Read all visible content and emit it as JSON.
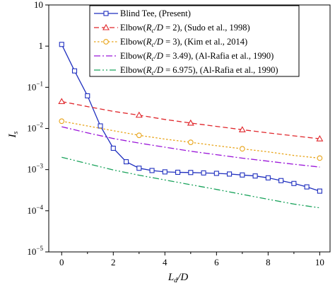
{
  "chart_data": {
    "type": "line",
    "xlabel": "",
    "ylabel": "",
    "xlim": [
      -0.5,
      10.4
    ],
    "ylim_log10": [
      -5,
      1
    ],
    "y_scale": "log",
    "grid": false,
    "legend_placement": "top",
    "x_ticks": [
      0,
      2,
      4,
      6,
      8,
      10
    ],
    "x_tick_labels": [
      "0",
      "2",
      "4",
      "6",
      "8",
      "10"
    ],
    "y_ticks": [
      10,
      1,
      0.1,
      0.01,
      0.001,
      0.0001,
      1e-05
    ],
    "y_tick_labels": [
      {
        "base": "10",
        "exp": ""
      },
      {
        "base": "1",
        "exp": ""
      },
      {
        "base": "10",
        "exp": "−1"
      },
      {
        "base": "10",
        "exp": "−2"
      },
      {
        "base": "10",
        "exp": "−3"
      },
      {
        "base": "10",
        "exp": "−4"
      },
      {
        "base": "10",
        "exp": "−5"
      }
    ],
    "series": [
      {
        "name": "Blind Tee, (Present)",
        "color": "#1f2fbf",
        "line": "solid",
        "marker": "square",
        "x": [
          0,
          0.5,
          1,
          1.5,
          2,
          2.5,
          3,
          3.5,
          4,
          4.5,
          5,
          5.5,
          6,
          6.5,
          7,
          7.5,
          8,
          8.5,
          9,
          9.5,
          10
        ],
        "y": [
          1.1,
          0.25,
          0.062,
          0.0115,
          0.0033,
          0.00155,
          0.00108,
          0.00095,
          0.00088,
          0.00086,
          0.00085,
          0.00083,
          0.00081,
          0.00078,
          0.00074,
          0.0007,
          0.00063,
          0.00054,
          0.00046,
          0.00038,
          0.0003
        ]
      },
      {
        "name": "Elbow(Rc/D = 2), (Sudo et al., 1998)",
        "color": "#e0262b",
        "line": "dashed",
        "marker": "triangle",
        "x": [
          0,
          1,
          2,
          3,
          4,
          5,
          6,
          7,
          8,
          9,
          10
        ],
        "y": [
          0.045,
          0.034,
          0.026,
          0.021,
          0.0165,
          0.0135,
          0.0112,
          0.0093,
          0.0078,
          0.0066,
          0.0056
        ],
        "marker_x": [
          0,
          3,
          5,
          7,
          10
        ]
      },
      {
        "name": "Elbow(Rc/D = 3), (Kim et al., 2014)",
        "color": "#e8a317",
        "line": "dotted",
        "marker": "circle",
        "x": [
          0,
          1,
          2,
          3,
          4,
          5,
          6,
          7,
          8,
          9,
          10
        ],
        "y": [
          0.015,
          0.0115,
          0.0088,
          0.0068,
          0.0055,
          0.0046,
          0.0038,
          0.0032,
          0.0027,
          0.0022,
          0.0019
        ],
        "marker_x": [
          0,
          3,
          5,
          7,
          10
        ]
      },
      {
        "name": "Elbow(Rc/D = 3.49), (Al-Rafia et al., 1990)",
        "color": "#9b17d9",
        "line": "dashdot",
        "marker": "none",
        "x": [
          0,
          1,
          2,
          3,
          4,
          5,
          6,
          7,
          8,
          9,
          10
        ],
        "y": [
          0.011,
          0.0078,
          0.0057,
          0.0044,
          0.0035,
          0.0028,
          0.0023,
          0.0019,
          0.0016,
          0.00135,
          0.00115
        ]
      },
      {
        "name": "Elbow(Rc/D = 6.975), (Al-Rafia et al., 1990)",
        "color": "#1aa35c",
        "line": "dashdotdot",
        "marker": "none",
        "x": [
          0,
          1,
          2,
          3,
          4,
          5,
          6,
          7,
          8,
          9,
          10
        ],
        "y": [
          0.002,
          0.0014,
          0.00098,
          0.00073,
          0.00056,
          0.00043,
          0.00033,
          0.00025,
          0.00019,
          0.000145,
          0.000118
        ]
      }
    ]
  },
  "legend": [
    {
      "id": "s0",
      "label_pre": "Blind Tee, (Present)",
      "label_it": "",
      "label_sub": "",
      "label_it2": "",
      "label_post": ""
    },
    {
      "id": "s1",
      "label_pre": "Elbow(",
      "label_it": "R",
      "label_sub": "c",
      "label_it2": "/D",
      "label_post": " = 2), (Sudo et al., 1998)"
    },
    {
      "id": "s2",
      "label_pre": "Elbow(",
      "label_it": "R",
      "label_sub": "c",
      "label_it2": "/D",
      "label_post": " = 3), (Kim et al., 2014)"
    },
    {
      "id": "s3",
      "label_pre": "Elbow(",
      "label_it": "R",
      "label_sub": "c",
      "label_it2": "/D",
      "label_post": " = 3.49), (Al-Rafia et al., 1990)"
    },
    {
      "id": "s4",
      "label_pre": "Elbow(",
      "label_it": "R",
      "label_sub": "c",
      "label_it2": "/D",
      "label_post": " = 6.975), (Al-Rafia et al., 1990)"
    }
  ],
  "axis_titles": {
    "x_main": "L",
    "x_sub": "d",
    "x_rest": "/D",
    "y_main": "I",
    "y_sub": "s"
  }
}
